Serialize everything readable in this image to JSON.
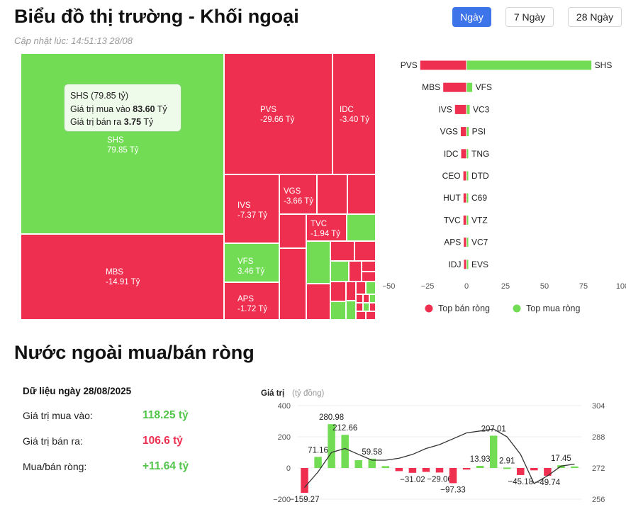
{
  "header": {
    "title": "Biểu đồ thị trường - Khối ngoại",
    "updated": "Cập nhật lúc: 14:51:13 28/08",
    "ranges": [
      {
        "label": "Ngày",
        "active": true
      },
      {
        "label": "7 Ngày",
        "active": false
      },
      {
        "label": "28 Ngày",
        "active": false
      }
    ]
  },
  "treemap": {
    "labels": [
      {
        "code": "SHS",
        "value": "79.85 Tỷ"
      },
      {
        "code": "PVS",
        "value": "-29.66 Tỷ"
      },
      {
        "code": "IDC",
        "value": "-3.40 Tỷ"
      },
      {
        "code": "MBS",
        "value": "-14.91 Tỷ"
      },
      {
        "code": "IVS",
        "value": "-7.37 Tỷ"
      },
      {
        "code": "VGS",
        "value": "-3.66 Tỷ"
      },
      {
        "code": "TVC",
        "value": "-1.94 Tỷ"
      },
      {
        "code": "VFS",
        "value": "3.46 Tỷ"
      },
      {
        "code": "APS",
        "value": "-1.72 Tỷ"
      }
    ],
    "tooltip": {
      "title": "SHS (79.85 tỷ)",
      "buy_label": "Giá trị mua vào",
      "buy_value": "83.60",
      "sell_label": "Giá trị bán ra",
      "sell_value": "3.75",
      "unit": "Tỷ"
    }
  },
  "chart_data": [
    {
      "type": "bar",
      "orientation": "horizontal",
      "sell_codes": [
        "PVS",
        "MBS",
        "IVS",
        "VGS",
        "IDC",
        "CEO",
        "HUT",
        "TVC",
        "APS",
        "IDJ"
      ],
      "sell_values": [
        -29.66,
        -14.91,
        -7.37,
        -3.66,
        -3.4,
        -2.0,
        -1.9,
        -1.94,
        -1.72,
        -1.6
      ],
      "buy_codes": [
        "SHS",
        "VFS",
        "VC3",
        "PSI",
        "TNG",
        "DTD",
        "C69",
        "VTZ",
        "VC7",
        "EVS"
      ],
      "buy_values": [
        79.85,
        3.46,
        1.8,
        1.2,
        0.9,
        0.8,
        0.7,
        0.6,
        0.5,
        0.4
      ],
      "x_ticks": [
        "−50",
        "−25",
        "0",
        "25",
        "50",
        "75",
        "100"
      ],
      "xlim": [
        -50,
        100
      ],
      "legend": [
        {
          "name": "Top bán ròng",
          "color": "#ef2f4f"
        },
        {
          "name": "Top mua ròng",
          "color": "#72dd54"
        }
      ],
      "legend_position": "bottom"
    },
    {
      "type": "bar",
      "ylabel": "Giá trị",
      "ylabel_unit": "(tỷ đồng)",
      "ylim": [
        -200,
        400
      ],
      "y_ticks": [
        "400",
        "200",
        "0",
        "−200"
      ],
      "y2lim": [
        256,
        304
      ],
      "y2_ticks": [
        "304",
        "288",
        "272",
        "256"
      ],
      "values": [
        -159.27,
        71.16,
        280.98,
        212.66,
        50,
        59.58,
        12,
        -20,
        -31.02,
        -25,
        -29.06,
        -97.33,
        -10,
        13.93,
        207.01,
        2.91,
        -45.18,
        -15,
        -49.74,
        17.45,
        10
      ],
      "data_labels": [
        "−159.27",
        "71.16",
        "280.98",
        "212.66",
        "",
        "59.58",
        "",
        "",
        "−31.02",
        "",
        "−29.06",
        "−97.33",
        "",
        "13.93",
        "207.01",
        "2.91",
        "−45.18",
        "",
        "−49.74",
        "17.45",
        ""
      ],
      "line_values": [
        262,
        270,
        280,
        282,
        279,
        276,
        276,
        277,
        279,
        282,
        284,
        287,
        290,
        291,
        292,
        288,
        279,
        264,
        268,
        273,
        274
      ],
      "colors": {
        "positive": "#72dd54",
        "negative": "#ef2f4f",
        "line": "#333333"
      }
    }
  ],
  "net": {
    "title": "Nước ngoài mua/bán ròng",
    "date_label": "Dữ liệu ngày 28/08/2025",
    "rows": [
      {
        "label": "Giá trị mua vào:",
        "value": "118.25 tỷ",
        "color": "#52c44a"
      },
      {
        "label": "Giá trị bán ra:",
        "value": "106.6 tỷ",
        "color": "#ef2f4f"
      },
      {
        "label": "Mua/bán ròng:",
        "value": "+11.64 tỷ",
        "color": "#52c44a"
      }
    ]
  }
}
